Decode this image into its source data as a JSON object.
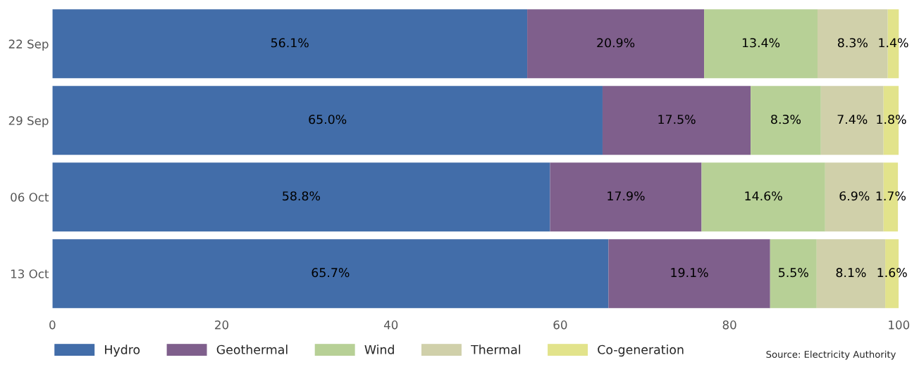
{
  "chart_data": {
    "type": "bar",
    "orientation": "horizontal",
    "stacked": true,
    "categories": [
      "22 Sep",
      "29 Sep",
      "06 Oct",
      "13 Oct"
    ],
    "series": [
      {
        "name": "Hydro",
        "color": "#426da9",
        "values": [
          56.1,
          65.0,
          58.8,
          65.7
        ],
        "value_labels": [
          "56.1%",
          "65.0%",
          "58.8%",
          "65.7%"
        ]
      },
      {
        "name": "Geothermal",
        "color": "#7f5f8c",
        "values": [
          20.9,
          17.5,
          17.9,
          19.1
        ],
        "value_labels": [
          "20.9%",
          "17.5%",
          "17.9%",
          "19.1%"
        ]
      },
      {
        "name": "Wind",
        "color": "#b7d096",
        "values": [
          13.4,
          8.3,
          14.6,
          5.5
        ],
        "value_labels": [
          "13.4%",
          "8.3%",
          "14.6%",
          "5.5%"
        ]
      },
      {
        "name": "Thermal",
        "color": "#d0d0aa",
        "values": [
          8.3,
          7.4,
          6.9,
          8.1
        ],
        "value_labels": [
          "8.3%",
          "7.4%",
          "6.9%",
          "8.1%"
        ]
      },
      {
        "name": "Co-generation",
        "color": "#e2e38b",
        "values": [
          1.4,
          1.8,
          1.7,
          1.6
        ],
        "value_labels": [
          "1.4%",
          "1.8%",
          "1.7%",
          "1.6%"
        ]
      }
    ],
    "xlim": [
      0,
      100
    ],
    "xticks": [
      0,
      20,
      40,
      60,
      80,
      100
    ],
    "grid": false,
    "legend": "bottom left",
    "annotations": [
      "Source: Electricity Authority"
    ]
  }
}
